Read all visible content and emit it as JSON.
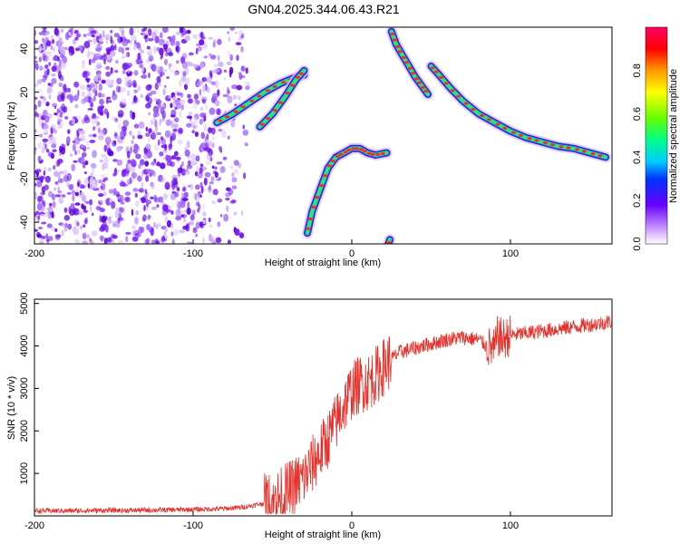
{
  "chart_data": [
    {
      "type": "heatmap",
      "title": "GN04.2025.344.06.43.R21",
      "xlabel": "Height of straight line (km)",
      "ylabel": "Frequency (Hz)",
      "xlim": [
        -200,
        164
      ],
      "ylim": [
        -50,
        50
      ],
      "xticks": [
        -200,
        -100,
        0,
        100
      ],
      "yticks": [
        -40,
        -20,
        0,
        20,
        40
      ],
      "colorbar": {
        "label": "Normalized spectral amplitude",
        "range": [
          0,
          1
        ],
        "ticks": [
          "0.0",
          "0.2",
          "0.4",
          "0.6",
          "0.8"
        ]
      },
      "noise_region_x": [
        -200,
        -65
      ],
      "traces": [
        {
          "points": [
            [
              -85,
              6
            ],
            [
              -75,
              10
            ],
            [
              -65,
              15
            ],
            [
              -55,
              20
            ],
            [
              -45,
              24
            ],
            [
              -35,
              27
            ],
            [
              -30,
              28
            ]
          ]
        },
        {
          "points": [
            [
              -58,
              4
            ],
            [
              -50,
              10
            ],
            [
              -42,
              18
            ],
            [
              -35,
              26
            ],
            [
              -30,
              30
            ]
          ]
        },
        {
          "points": [
            [
              -28,
              -45
            ],
            [
              -25,
              -35
            ],
            [
              -20,
              -25
            ],
            [
              -15,
              -15
            ],
            [
              -10,
              -10
            ],
            [
              -5,
              -8
            ],
            [
              0,
              -6
            ],
            [
              5,
              -6
            ],
            [
              10,
              -8
            ],
            [
              15,
              -9
            ],
            [
              22,
              -8
            ]
          ]
        },
        {
          "points": [
            [
              25,
              48
            ],
            [
              28,
              42
            ],
            [
              32,
              37
            ],
            [
              36,
              32
            ],
            [
              40,
              27
            ],
            [
              44,
              23
            ],
            [
              48,
              19
            ]
          ]
        },
        {
          "points": [
            [
              50,
              32
            ],
            [
              55,
              28
            ],
            [
              62,
              22
            ],
            [
              70,
              16
            ],
            [
              80,
              10
            ],
            [
              90,
              6
            ],
            [
              100,
              2
            ],
            [
              110,
              -1
            ],
            [
              120,
              -3
            ],
            [
              130,
              -5
            ],
            [
              140,
              -6
            ],
            [
              150,
              -8
            ],
            [
              160,
              -10
            ]
          ]
        },
        {
          "points": [
            [
              22,
              -52
            ],
            [
              24,
              -48
            ]
          ]
        }
      ]
    },
    {
      "type": "line",
      "xlabel": "Height of straight line (km)",
      "ylabel": "SNR (10 * v/v)",
      "xlim": [
        -200,
        164
      ],
      "ylim": [
        0,
        5100
      ],
      "xticks": [
        -200,
        -100,
        0,
        100
      ],
      "yticks": [
        1000,
        2000,
        3000,
        4000,
        5000
      ],
      "color": "#e8302a",
      "series": [
        {
          "x": [
            -200,
            -180,
            -160,
            -140,
            -120,
            -100,
            -80,
            -70,
            -60,
            -50,
            -45,
            -40,
            -35,
            -30,
            -25,
            -20,
            -15,
            -10,
            -5,
            0,
            5,
            10,
            15,
            20,
            25,
            30,
            40,
            50,
            60,
            70,
            80,
            85,
            90,
            92,
            95,
            100,
            110,
            120,
            130,
            140,
            150,
            160,
            164
          ],
          "y": [
            120,
            120,
            130,
            130,
            140,
            150,
            170,
            200,
            260,
            350,
            450,
            600,
            750,
            900,
            1200,
            1500,
            1800,
            2200,
            2600,
            2950,
            3100,
            3150,
            3300,
            3500,
            3700,
            3850,
            3950,
            4050,
            4150,
            4200,
            4150,
            4000,
            3900,
            4250,
            4150,
            4250,
            4300,
            4350,
            4400,
            4450,
            4500,
            4550,
            4580
          ]
        }
      ]
    }
  ]
}
